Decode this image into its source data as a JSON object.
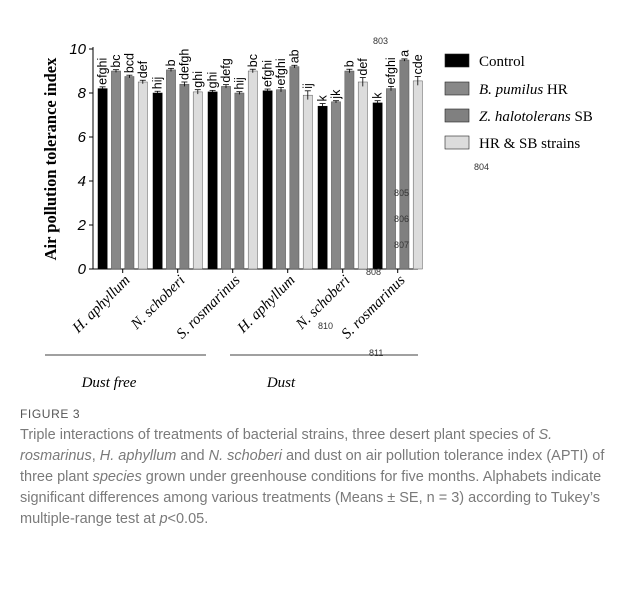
{
  "figure": {
    "label": "FIGURE 3",
    "caption_parts": [
      {
        "t": "Triple interactions of treatments of bacterial strains, three desert plant species of ",
        "i": false
      },
      {
        "t": "S. rosmarinus",
        "i": true
      },
      {
        "t": ", ",
        "i": false
      },
      {
        "t": "H. aphyllum",
        "i": true
      },
      {
        "t": " and ",
        "i": false
      },
      {
        "t": "N. schoberi",
        "i": true
      },
      {
        "t": " and dust on air pollution tolerance index (APTI) of three plant ",
        "i": false
      },
      {
        "t": "species",
        "i": true
      },
      {
        "t": " grown under greenhouse conditions for five months. Alphabets indicate significant differences among various treatments (Means ± SE, n = 3) according to Tukey’s multiple-range test at ",
        "i": false
      },
      {
        "t": "p",
        "i": true
      },
      {
        "t": "<0.05.",
        "i": false
      }
    ]
  },
  "line_numbers": [
    "803",
    "804",
    "805",
    "806",
    "807",
    "808",
    "810",
    "811"
  ],
  "chart_data": {
    "type": "bar",
    "ylabel": "Air pollution tolerance index",
    "ylim": [
      0,
      10
    ],
    "yticks": [
      0,
      2,
      4,
      6,
      8,
      10
    ],
    "categories": [
      "H. aphyllum",
      "N. schoberi",
      "S. rosmarinus",
      "H. aphyllum",
      "N. schoberi",
      "S. rosmarinus"
    ],
    "groups": [
      {
        "label": "Dust free",
        "span": [
          0,
          2
        ]
      },
      {
        "label": "Dust",
        "span": [
          3,
          5
        ]
      }
    ],
    "series": [
      {
        "name": "Control",
        "color": "#000000",
        "italic_prefix": "",
        "values": [
          8.2,
          8.0,
          8.05,
          8.1,
          7.4,
          7.55
        ],
        "errors": [
          0.08,
          0.08,
          0.07,
          0.08,
          0.12,
          0.1
        ],
        "letters": [
          "efghi",
          "hij",
          "ghi",
          "efghi",
          "k",
          "k"
        ]
      },
      {
        "name": "B. pumilus HR",
        "color": "#888888",
        "italic_prefix": "B. pumilus",
        "suffix": " HR",
        "values": [
          9.0,
          9.05,
          8.3,
          8.15,
          7.6,
          8.2
        ],
        "errors": [
          0.06,
          0.07,
          0.08,
          0.1,
          0.05,
          0.1
        ],
        "letters": [
          "bc",
          "b",
          "defg",
          "efghi",
          "jk",
          "efghi"
        ]
      },
      {
        "name": "Z. halotolerans SB",
        "color": "#808080",
        "italic_prefix": "Z. halotolerans",
        "suffix": " SB",
        "values": [
          8.75,
          8.4,
          8.0,
          9.2,
          9.0,
          9.5
        ],
        "errors": [
          0.06,
          0.1,
          0.06,
          0.06,
          0.08,
          0.05
        ],
        "letters": [
          "bcd",
          "defgh",
          "hij",
          "ab",
          "b",
          "a"
        ]
      },
      {
        "name": "HR & SB strains",
        "color": "#dcdcdc",
        "italic_prefix": "",
        "values": [
          8.5,
          8.05,
          9.0,
          7.9,
          8.5,
          8.55
        ],
        "errors": [
          0.08,
          0.1,
          0.08,
          0.2,
          0.2,
          0.2
        ],
        "letters": [
          "def",
          "ghi",
          "bc",
          "ij",
          "def",
          "cde"
        ]
      }
    ]
  }
}
